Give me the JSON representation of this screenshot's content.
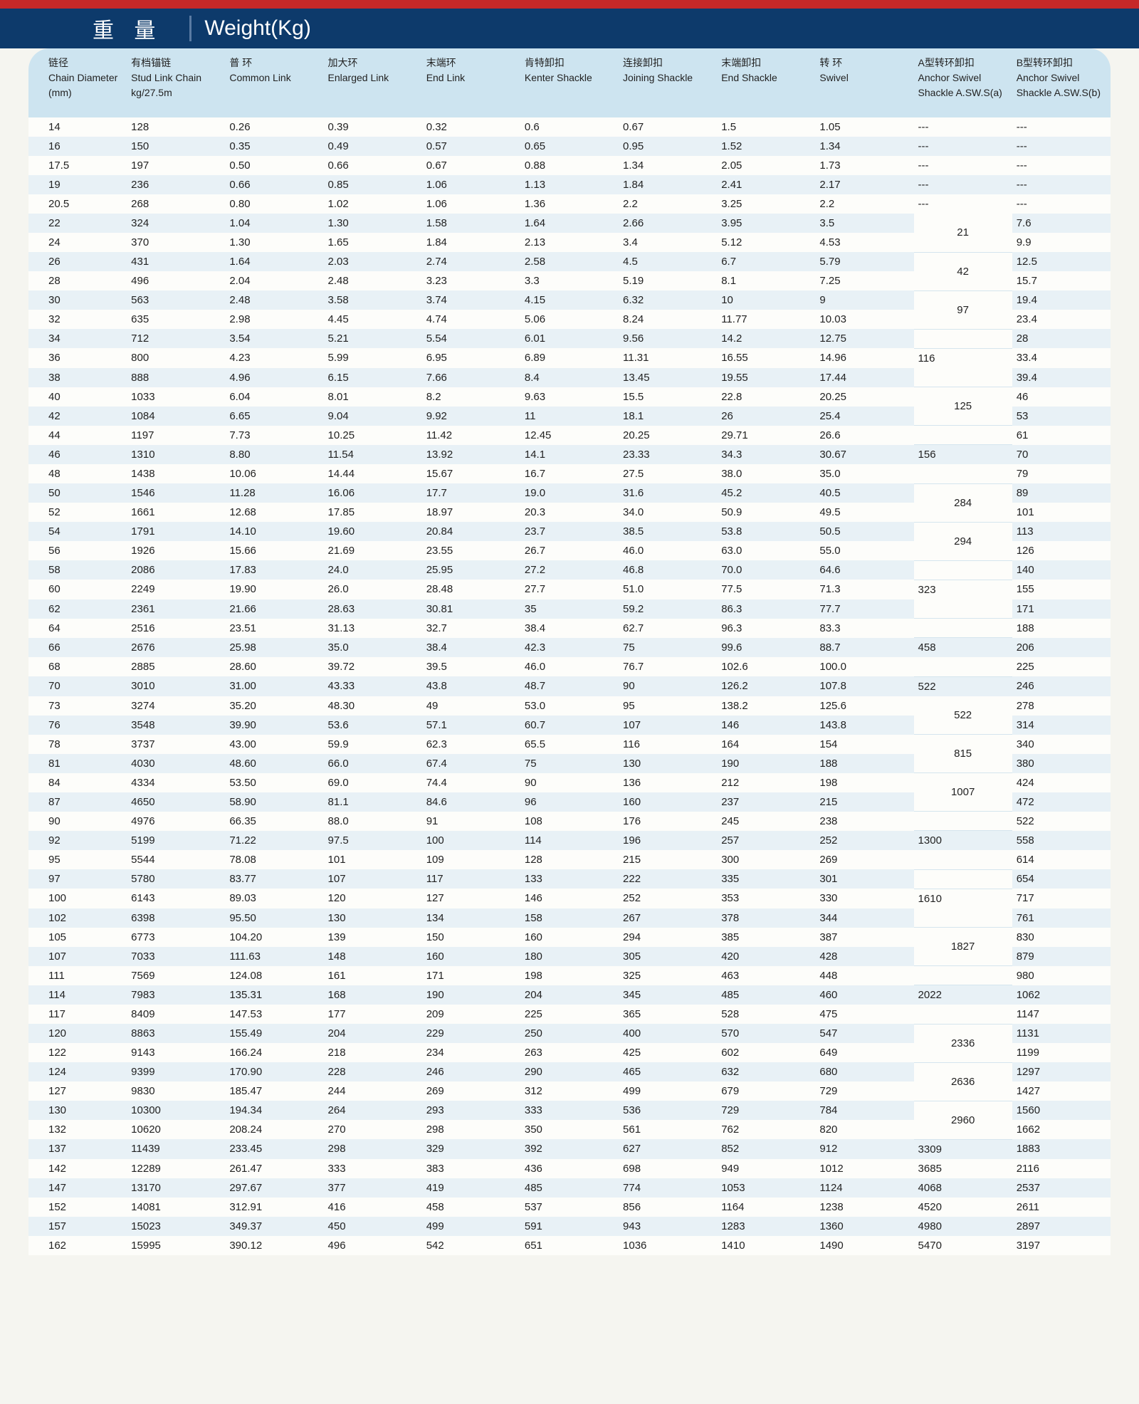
{
  "title_cn": "重 量",
  "title_en": "Weight(Kg)",
  "columns": [
    {
      "cn": "链径",
      "en": "Chain Diameter (mm)"
    },
    {
      "cn": "有档锚链",
      "en": "Stud Link Chain kg/27.5m"
    },
    {
      "cn": "普 环",
      "en": "Common Link"
    },
    {
      "cn": "加大环",
      "en": "Enlarged Link"
    },
    {
      "cn": "末端环",
      "en": "End Link"
    },
    {
      "cn": "肯特卸扣",
      "en": "Kenter Shackle"
    },
    {
      "cn": "连接卸扣",
      "en": "Joining Shackle"
    },
    {
      "cn": "末端卸扣",
      "en": "End Shackle"
    },
    {
      "cn": "转 环",
      "en": "Swivel"
    },
    {
      "cn": "A型转环卸扣",
      "en": "Anchor Swivel Shackle A.SW.S(a)"
    },
    {
      "cn": "B型转环卸扣",
      "en": "Anchor Swivel Shackle A.SW.S(b)"
    }
  ],
  "rows": [
    [
      "14",
      "128",
      "0.26",
      "0.39",
      "0.32",
      "0.6",
      "0.67",
      "1.5",
      "1.05",
      "---",
      "---"
    ],
    [
      "16",
      "150",
      "0.35",
      "0.49",
      "0.57",
      "0.65",
      "0.95",
      "1.52",
      "1.34",
      "---",
      "---"
    ],
    [
      "17.5",
      "197",
      "0.50",
      "0.66",
      "0.67",
      "0.88",
      "1.34",
      "2.05",
      "1.73",
      "---",
      "---"
    ],
    [
      "19",
      "236",
      "0.66",
      "0.85",
      "1.06",
      "1.13",
      "1.84",
      "2.41",
      "2.17",
      "---",
      "---"
    ],
    [
      "20.5",
      "268",
      "0.80",
      "1.02",
      "1.06",
      "1.36",
      "2.2",
      "3.25",
      "2.2",
      "---",
      "---"
    ],
    [
      "22",
      "324",
      "1.04",
      "1.30",
      "1.58",
      "1.64",
      "2.66",
      "3.95",
      "3.5",
      {
        "v": "21",
        "span": 2
      },
      "7.6"
    ],
    [
      "24",
      "370",
      "1.30",
      "1.65",
      "1.84",
      "2.13",
      "3.4",
      "5.12",
      "4.53",
      null,
      "9.9"
    ],
    [
      "26",
      "431",
      "1.64",
      "2.03",
      "2.74",
      "2.58",
      "4.5",
      "6.7",
      "5.79",
      {
        "v": "42",
        "span": 2
      },
      "12.5"
    ],
    [
      "28",
      "496",
      "2.04",
      "2.48",
      "3.23",
      "3.3",
      "5.19",
      "8.1",
      "7.25",
      null,
      "15.7"
    ],
    [
      "30",
      "563",
      "2.48",
      "3.58",
      "3.74",
      "4.15",
      "6.32",
      "10",
      "9",
      {
        "v": "97",
        "span": 2
      },
      "19.4"
    ],
    [
      "32",
      "635",
      "2.98",
      "4.45",
      "4.74",
      "5.06",
      "8.24",
      "11.77",
      "10.03",
      null,
      "23.4"
    ],
    [
      "34",
      "712",
      "3.54",
      "5.21",
      "5.54",
      "6.01",
      "9.56",
      "14.2",
      "12.75",
      {
        "v": "",
        "span": 1
      },
      "28"
    ],
    [
      "36",
      "800",
      "4.23",
      "5.99",
      "6.95",
      "6.89",
      "11.31",
      "16.55",
      "14.96",
      "116",
      "33.4"
    ],
    [
      "38",
      "888",
      "4.96",
      "6.15",
      "7.66",
      "8.4",
      "13.45",
      "19.55",
      "17.44",
      {
        "v": "",
        "span": 1
      },
      "39.4"
    ],
    [
      "40",
      "1033",
      "6.04",
      "8.01",
      "8.2",
      "9.63",
      "15.5",
      "22.8",
      "20.25",
      {
        "v": "125",
        "span": 2
      },
      "46"
    ],
    [
      "42",
      "1084",
      "6.65",
      "9.04",
      "9.92",
      "11",
      "18.1",
      "26",
      "25.4",
      null,
      "53"
    ],
    [
      "44",
      "1197",
      "7.73",
      "10.25",
      "11.42",
      "12.45",
      "20.25",
      "29.71",
      "26.6",
      {
        "v": "",
        "span": 1
      },
      "61"
    ],
    [
      "46",
      "1310",
      "8.80",
      "11.54",
      "13.92",
      "14.1",
      "23.33",
      "34.3",
      "30.67",
      "156",
      "70"
    ],
    [
      "48",
      "1438",
      "10.06",
      "14.44",
      "15.67",
      "16.7",
      "27.5",
      "38.0",
      "35.0",
      {
        "v": "",
        "span": 1
      },
      "79"
    ],
    [
      "50",
      "1546",
      "11.28",
      "16.06",
      "17.7",
      "19.0",
      "31.6",
      "45.2",
      "40.5",
      {
        "v": "284",
        "span": 2
      },
      "89"
    ],
    [
      "52",
      "1661",
      "12.68",
      "17.85",
      "18.97",
      "20.3",
      "34.0",
      "50.9",
      "49.5",
      null,
      "101"
    ],
    [
      "54",
      "1791",
      "14.10",
      "19.60",
      "20.84",
      "23.7",
      "38.5",
      "53.8",
      "50.5",
      {
        "v": "294",
        "span": 2
      },
      "113"
    ],
    [
      "56",
      "1926",
      "15.66",
      "21.69",
      "23.55",
      "26.7",
      "46.0",
      "63.0",
      "55.0",
      null,
      "126"
    ],
    [
      "58",
      "2086",
      "17.83",
      "24.0",
      "25.95",
      "27.2",
      "46.8",
      "70.0",
      "64.6",
      {
        "v": "",
        "span": 1
      },
      "140"
    ],
    [
      "60",
      "2249",
      "19.90",
      "26.0",
      "28.48",
      "27.7",
      "51.0",
      "77.5",
      "71.3",
      "323",
      "155"
    ],
    [
      "62",
      "2361",
      "21.66",
      "28.63",
      "30.81",
      "35",
      "59.2",
      "86.3",
      "77.7",
      {
        "v": "",
        "span": 1
      },
      "171"
    ],
    [
      "64",
      "2516",
      "23.51",
      "31.13",
      "32.7",
      "38.4",
      "62.7",
      "96.3",
      "83.3",
      {
        "v": "",
        "span": 1
      },
      "188"
    ],
    [
      "66",
      "2676",
      "25.98",
      "35.0",
      "38.4",
      "42.3",
      "75",
      "99.6",
      "88.7",
      "458",
      "206"
    ],
    [
      "68",
      "2885",
      "28.60",
      "39.72",
      "39.5",
      "46.0",
      "76.7",
      "102.6",
      "100.0",
      {
        "v": "",
        "span": 1
      },
      "225"
    ],
    [
      "70",
      "3010",
      "31.00",
      "43.33",
      "43.8",
      "48.7",
      "90",
      "126.2",
      "107.8",
      "522",
      "246"
    ],
    [
      "73",
      "3274",
      "35.20",
      "48.30",
      "49",
      "53.0",
      "95",
      "138.2",
      "125.6",
      {
        "v": "522",
        "span": 2
      },
      "278"
    ],
    [
      "76",
      "3548",
      "39.90",
      "53.6",
      "57.1",
      "60.7",
      "107",
      "146",
      "143.8",
      null,
      "314"
    ],
    [
      "78",
      "3737",
      "43.00",
      "59.9",
      "62.3",
      "65.5",
      "116",
      "164",
      "154",
      {
        "v": "815",
        "span": 2
      },
      "340"
    ],
    [
      "81",
      "4030",
      "48.60",
      "66.0",
      "67.4",
      "75",
      "130",
      "190",
      "188",
      null,
      "380"
    ],
    [
      "84",
      "4334",
      "53.50",
      "69.0",
      "74.4",
      "90",
      "136",
      "212",
      "198",
      {
        "v": "1007",
        "span": 2
      },
      "424"
    ],
    [
      "87",
      "4650",
      "58.90",
      "81.1",
      "84.6",
      "96",
      "160",
      "237",
      "215",
      null,
      "472"
    ],
    [
      "90",
      "4976",
      "66.35",
      "88.0",
      "91",
      "108",
      "176",
      "245",
      "238",
      {
        "v": "",
        "span": 1
      },
      "522"
    ],
    [
      "92",
      "5199",
      "71.22",
      "97.5",
      "100",
      "114",
      "196",
      "257",
      "252",
      "1300",
      "558"
    ],
    [
      "95",
      "5544",
      "78.08",
      "101",
      "109",
      "128",
      "215",
      "300",
      "269",
      {
        "v": "",
        "span": 1
      },
      "614"
    ],
    [
      "97",
      "5780",
      "83.77",
      "107",
      "117",
      "133",
      "222",
      "335",
      "301",
      {
        "v": "",
        "span": 1
      },
      "654"
    ],
    [
      "100",
      "6143",
      "89.03",
      "120",
      "127",
      "146",
      "252",
      "353",
      "330",
      "1610",
      "717"
    ],
    [
      "102",
      "6398",
      "95.50",
      "130",
      "134",
      "158",
      "267",
      "378",
      "344",
      {
        "v": "",
        "span": 1
      },
      "761"
    ],
    [
      "105",
      "6773",
      "104.20",
      "139",
      "150",
      "160",
      "294",
      "385",
      "387",
      {
        "v": "1827",
        "span": 2
      },
      "830"
    ],
    [
      "107",
      "7033",
      "111.63",
      "148",
      "160",
      "180",
      "305",
      "420",
      "428",
      null,
      "879"
    ],
    [
      "111",
      "7569",
      "124.08",
      "161",
      "171",
      "198",
      "325",
      "463",
      "448",
      {
        "v": "",
        "span": 1
      },
      "980"
    ],
    [
      "114",
      "7983",
      "135.31",
      "168",
      "190",
      "204",
      "345",
      "485",
      "460",
      "2022",
      "1062"
    ],
    [
      "117",
      "8409",
      "147.53",
      "177",
      "209",
      "225",
      "365",
      "528",
      "475",
      {
        "v": "",
        "span": 1
      },
      "1147"
    ],
    [
      "120",
      "8863",
      "155.49",
      "204",
      "229",
      "250",
      "400",
      "570",
      "547",
      {
        "v": "2336",
        "span": 2
      },
      "1131"
    ],
    [
      "122",
      "9143",
      "166.24",
      "218",
      "234",
      "263",
      "425",
      "602",
      "649",
      null,
      "1199"
    ],
    [
      "124",
      "9399",
      "170.90",
      "228",
      "246",
      "290",
      "465",
      "632",
      "680",
      {
        "v": "2636",
        "span": 2
      },
      "1297"
    ],
    [
      "127",
      "9830",
      "185.47",
      "244",
      "269",
      "312",
      "499",
      "679",
      "729",
      null,
      "1427"
    ],
    [
      "130",
      "10300",
      "194.34",
      "264",
      "293",
      "333",
      "536",
      "729",
      "784",
      {
        "v": "2960",
        "span": 2
      },
      "1560"
    ],
    [
      "132",
      "10620",
      "208.24",
      "270",
      "298",
      "350",
      "561",
      "762",
      "820",
      null,
      "1662"
    ],
    [
      "137",
      "11439",
      "233.45",
      "298",
      "329",
      "392",
      "627",
      "852",
      "912",
      "3309",
      "1883"
    ],
    [
      "142",
      "12289",
      "261.47",
      "333",
      "383",
      "436",
      "698",
      "949",
      "1012",
      "3685",
      "2116"
    ],
    [
      "147",
      "13170",
      "297.67",
      "377",
      "419",
      "485",
      "774",
      "1053",
      "1124",
      "4068",
      "2537"
    ],
    [
      "152",
      "14081",
      "312.91",
      "416",
      "458",
      "537",
      "856",
      "1164",
      "1238",
      "4520",
      "2611"
    ],
    [
      "157",
      "15023",
      "349.37",
      "450",
      "499",
      "591",
      "943",
      "1283",
      "1360",
      "4980",
      "2897"
    ],
    [
      "162",
      "15995",
      "390.12",
      "496",
      "542",
      "651",
      "1036",
      "1410",
      "1490",
      "5470",
      "3197"
    ]
  ]
}
